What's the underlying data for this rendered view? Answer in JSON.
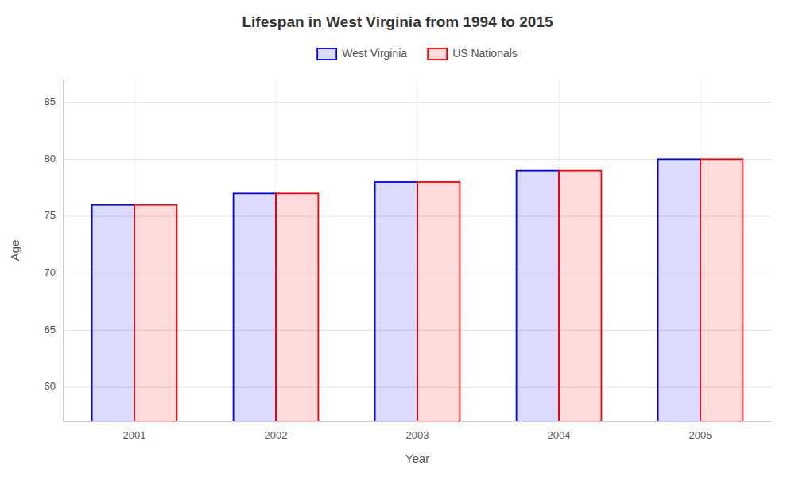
{
  "chart_data": {
    "type": "bar",
    "title": "Lifespan in West Virginia from 1994 to 2015",
    "xlabel": "Year",
    "ylabel": "Age",
    "categories": [
      "2001",
      "2002",
      "2003",
      "2004",
      "2005"
    ],
    "series": [
      {
        "name": "West Virginia",
        "color": "#0000ff",
        "values": [
          76,
          77,
          78,
          79,
          80
        ]
      },
      {
        "name": "US Nationals",
        "color": "#ff0000",
        "values": [
          76,
          77,
          78,
          79,
          80
        ]
      }
    ],
    "ylim": [
      57,
      87
    ],
    "yticks": [
      60,
      65,
      70,
      75,
      80,
      85
    ],
    "grid": true,
    "legend": "top"
  }
}
